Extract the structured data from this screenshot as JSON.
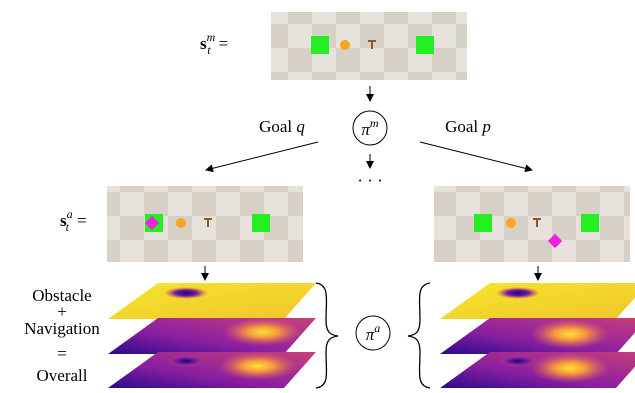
{
  "state_m": {
    "symbol": "s",
    "subscript": "t",
    "superscript": "m",
    "equals": "="
  },
  "policy_m": {
    "symbol": "π",
    "superscript": "m"
  },
  "goal_left": {
    "text": "Goal",
    "variable": "q"
  },
  "goal_right": {
    "text": "Goal",
    "variable": "p"
  },
  "ellipsis": "· · ·",
  "state_a": {
    "symbol": "s",
    "subscript": "t",
    "superscript": "a",
    "equals": "="
  },
  "maps": {
    "labels": [
      "Obstacle",
      "+",
      "Navigation",
      "=",
      "Overall"
    ]
  },
  "policy_a": {
    "symbol": "π",
    "superscript": "a"
  }
}
